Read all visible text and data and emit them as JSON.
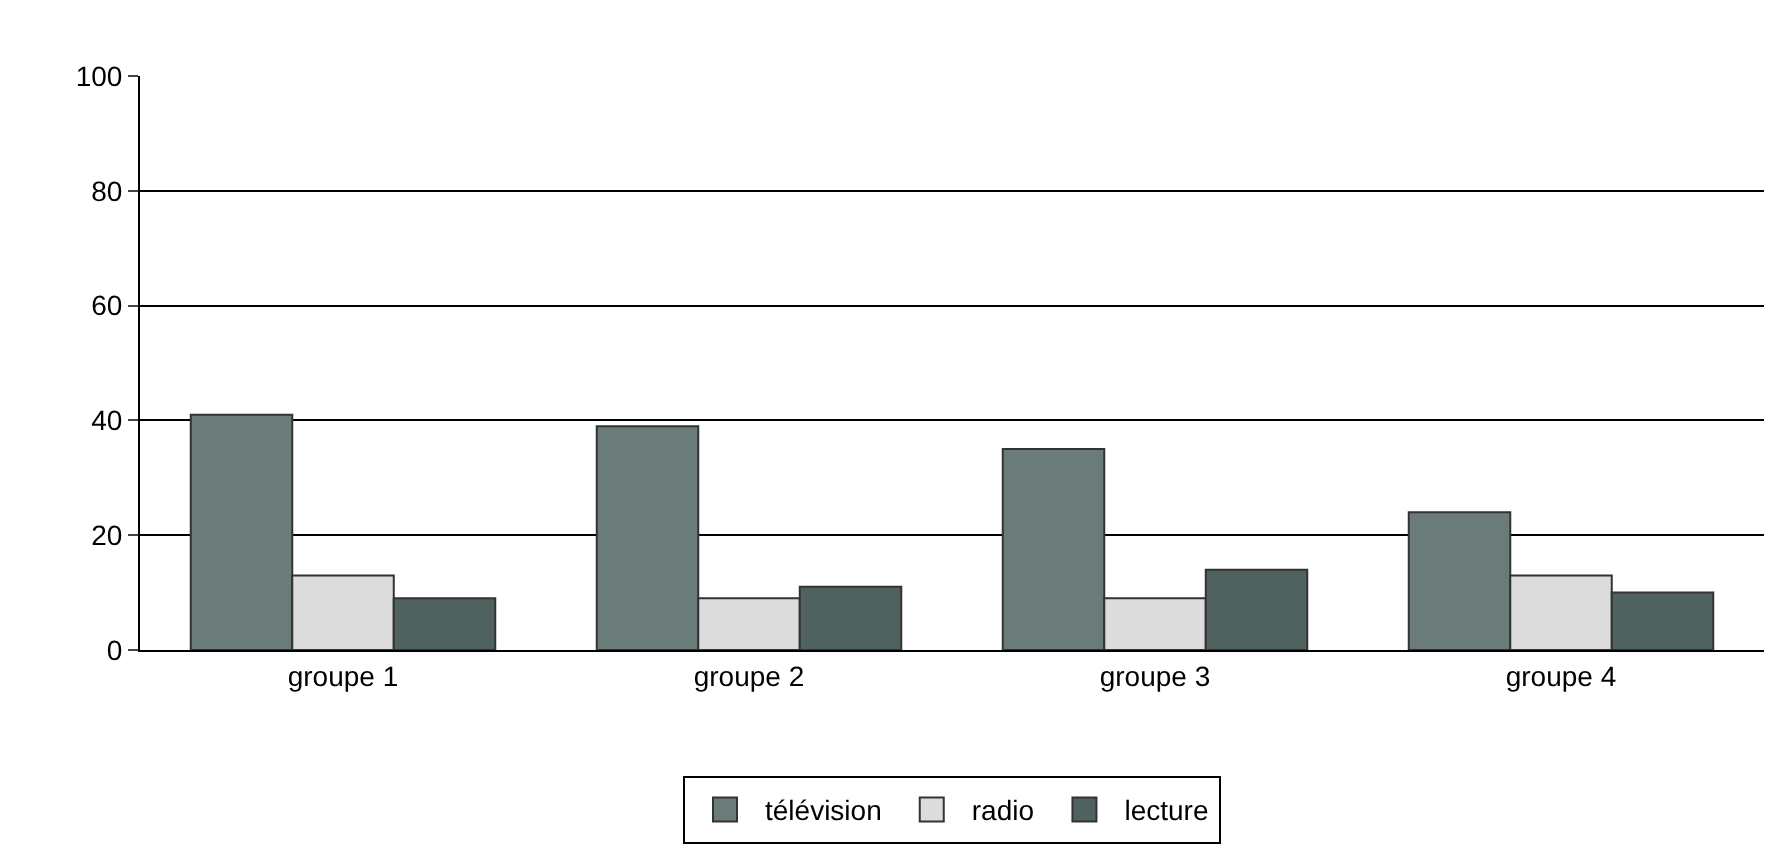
{
  "chart_data": {
    "type": "bar",
    "categories": [
      "groupe 1",
      "groupe 2",
      "groupe 3",
      "groupe 4"
    ],
    "series": [
      {
        "name": "télévision",
        "color": "#6b7b79",
        "values": [
          41,
          39,
          35,
          24
        ]
      },
      {
        "name": "radio",
        "color": "#dcdcdc",
        "values": [
          13,
          9,
          9,
          13
        ]
      },
      {
        "name": "lecture",
        "color": "#4f6260",
        "values": [
          9,
          11,
          14,
          10
        ]
      }
    ],
    "ylim": [
      0,
      100
    ],
    "yticks": [
      0,
      20,
      40,
      60,
      80,
      100
    ],
    "grid": "y",
    "legend": "bottom"
  }
}
